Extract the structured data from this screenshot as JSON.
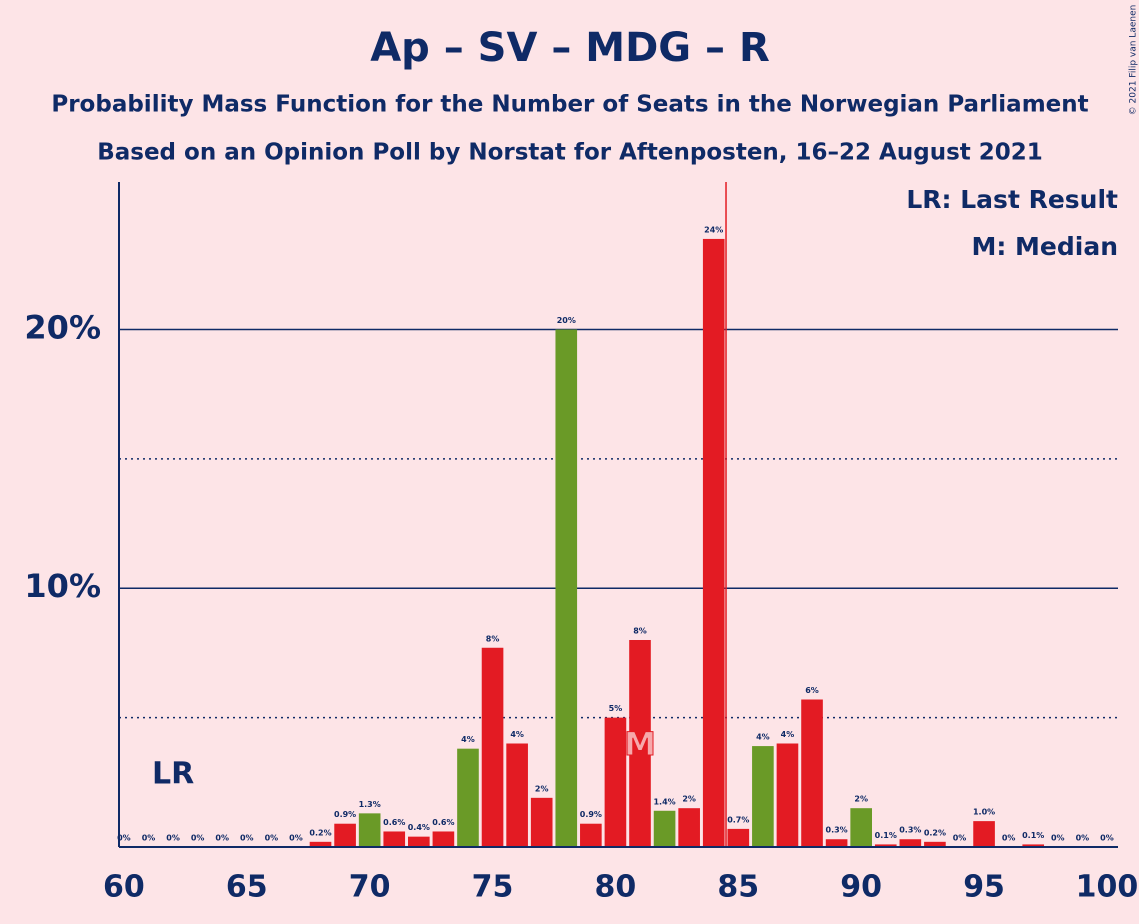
{
  "chart_data": {
    "type": "bar",
    "title": "Ap – SV – MDG – R",
    "subtitle": "Probability Mass Function for the Number of Seats in the Norwegian Parliament",
    "subtitle2": "Based on an Opinion Poll by Norstat for Aftenposten, 16–22 August 2021",
    "copyright": "© 2021 Filip van Laenen",
    "legend": [
      "LR: Last Result",
      "M: Median"
    ],
    "x": [
      60,
      61,
      62,
      63,
      64,
      65,
      66,
      67,
      68,
      69,
      70,
      71,
      72,
      73,
      74,
      75,
      76,
      77,
      78,
      79,
      80,
      81,
      82,
      83,
      84,
      85,
      86,
      87,
      88,
      89,
      90,
      91,
      92,
      93,
      94,
      95,
      96,
      97,
      98,
      99,
      100
    ],
    "values": [
      0,
      0,
      0,
      0,
      0,
      0,
      0,
      0,
      0.2,
      0.9,
      1.3,
      0.6,
      0.4,
      0.6,
      3.8,
      7.7,
      4.0,
      1.9,
      20.0,
      0.9,
      5.0,
      8.0,
      1.4,
      1.5,
      23.5,
      0.7,
      3.9,
      4.0,
      5.7,
      0.3,
      1.5,
      0.1,
      0.3,
      0.2,
      0,
      1.0,
      0,
      0.1,
      0,
      0,
      0
    ],
    "value_labels": [
      "0%",
      "0%",
      "0%",
      "0%",
      "0%",
      "0%",
      "0%",
      "0%",
      "0.2%",
      "0.9%",
      "1.3%",
      "0.6%",
      "0.4%",
      "0.6%",
      "4%",
      "8%",
      "4%",
      "2%",
      "20%",
      "0.9%",
      "5%",
      "8%",
      "1.4%",
      "2%",
      "24%",
      "0.7%",
      "4%",
      "4%",
      "6%",
      "0.3%",
      "2%",
      "0.1%",
      "0.3%",
      "0.2%",
      "0%",
      "1.0%",
      "0%",
      "0.1%",
      "0%",
      "0%",
      "0%"
    ],
    "colors": [
      "#e31b23",
      "#e31b23",
      "#6a9a27",
      "#e31b23",
      "#e31b23",
      "#e31b23",
      "#6a9a27",
      "#e31b23",
      "#e31b23",
      "#e31b23",
      "#6a9a27",
      "#e31b23",
      "#e31b23",
      "#e31b23",
      "#6a9a27",
      "#e31b23",
      "#e31b23",
      "#e31b23",
      "#6a9a27",
      "#e31b23",
      "#e31b23",
      "#e31b23",
      "#6a9a27",
      "#e31b23",
      "#e31b23",
      "#e31b23",
      "#6a9a27",
      "#e31b23",
      "#e31b23",
      "#e31b23",
      "#6a9a27",
      "#e31b23",
      "#e31b23",
      "#e31b23",
      "#6a9a27",
      "#e31b23",
      "#e31b23",
      "#e31b23",
      "#6a9a27",
      "#e31b23",
      "#e31b23"
    ],
    "last_result": {
      "x": 62,
      "label": "LR"
    },
    "median": {
      "x": 81,
      "label": "M"
    },
    "majority_line": 84.5,
    "xlim": [
      59.8,
      100.45
    ],
    "xticks": [
      60,
      65,
      70,
      75,
      80,
      85,
      90,
      95,
      100
    ],
    "ylim": [
      0,
      25.7
    ],
    "yticks": [
      {
        "value": 10,
        "label": "10%"
      },
      {
        "value": 20,
        "label": "20%"
      }
    ],
    "minor_yticks": [
      5,
      15
    ],
    "grid": true
  }
}
